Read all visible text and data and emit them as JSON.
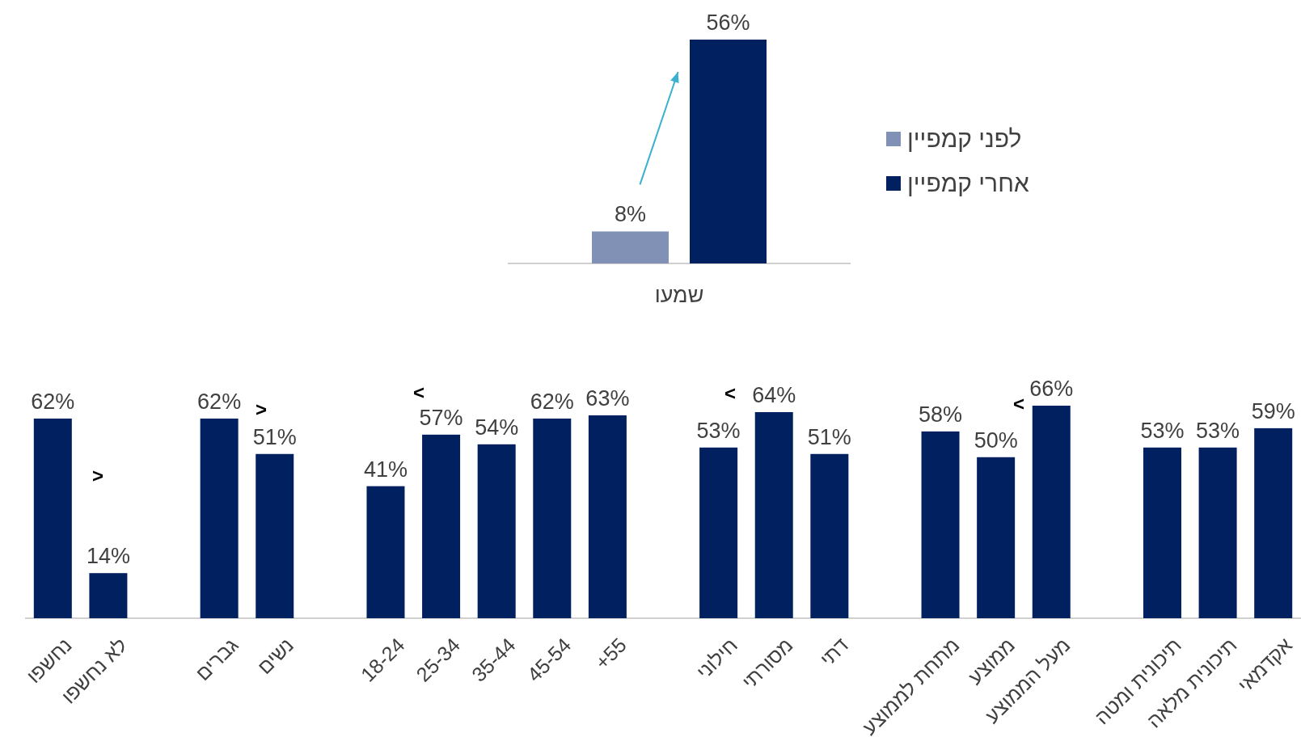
{
  "chart_data": [
    {
      "type": "bar",
      "categories": [
        "שמעו"
      ],
      "legend": "right",
      "series": [
        {
          "name": "לפני קמפיין",
          "color": "#8091b5",
          "values": [
            8
          ],
          "value_labels": [
            "8%"
          ]
        },
        {
          "name": "אחרי קמפיין",
          "color": "#002060",
          "values": [
            56
          ],
          "value_labels": [
            "56%"
          ]
        }
      ]
    },
    {
      "type": "bar",
      "color": "#002060",
      "categories": [
        "נחשפו",
        "לא נחשפו",
        null,
        "גברים",
        "נשים",
        null,
        "18-24",
        "25-34",
        "35-44",
        "45-54",
        "+55",
        null,
        "חילוני",
        "מסורתי",
        "דתי",
        null,
        "מתחת לממוצע",
        "ממוצע",
        "מעל הממוצע",
        null,
        "תיכונית ומטה",
        "תיכונית מלאה",
        "אקדמאי"
      ],
      "values": [
        62,
        14,
        null,
        62,
        51,
        null,
        41,
        57,
        54,
        62,
        63,
        null,
        53,
        64,
        51,
        null,
        58,
        50,
        66,
        null,
        53,
        53,
        59
      ],
      "value_labels": [
        "62%",
        "14%",
        null,
        "62%",
        "51%",
        null,
        "41%",
        "57%",
        "54%",
        "62%",
        "63%",
        null,
        "53%",
        "64%",
        "51%",
        null,
        "58%",
        "50%",
        "66%",
        null,
        "53%",
        "53%",
        "59%"
      ],
      "annotations": [
        ">",
        ">",
        "<",
        "<",
        "<"
      ]
    }
  ]
}
